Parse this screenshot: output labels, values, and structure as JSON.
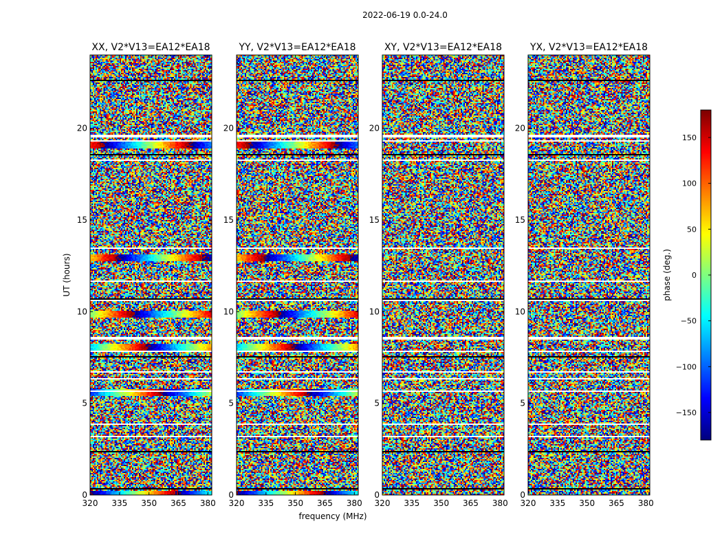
{
  "figure": {
    "suptitle": "2022-06-19 0.0-24.0",
    "xlabel": "frequency (MHz)",
    "ylabel": "UT (hours)"
  },
  "colorbar": {
    "label": "phase (deg.)",
    "range": [
      -180,
      180
    ],
    "ticks": [
      "150",
      "100",
      "50",
      "0",
      "−50",
      "−100",
      "−150"
    ],
    "tick_values": [
      150,
      100,
      50,
      0,
      -50,
      -100,
      -150
    ],
    "colormap": "jet"
  },
  "chart_data": [
    {
      "type": "heatmap",
      "title": "XX, V2*V13=EA12*EA18",
      "xlim": [
        320,
        382
      ],
      "ylim": [
        0,
        24
      ],
      "xticks": [
        "320",
        "335",
        "350",
        "365",
        "380"
      ],
      "xtick_values": [
        320,
        335,
        350,
        365,
        380
      ],
      "yticks": [
        "0",
        "5",
        "10",
        "15",
        "20"
      ],
      "ytick_values": [
        0,
        5,
        10,
        15,
        20
      ],
      "coherent_bands_ut": [
        0.1,
        5.6,
        8.1,
        9.9,
        13.0,
        19.1
      ],
      "value": "phase (deg.), mostly random noise"
    },
    {
      "type": "heatmap",
      "title": "YY, V2*V13=EA12*EA18",
      "xlim": [
        320,
        382
      ],
      "ylim": [
        0,
        24
      ],
      "xticks": [
        "320",
        "335",
        "350",
        "365",
        "380"
      ],
      "xtick_values": [
        320,
        335,
        350,
        365,
        380
      ],
      "yticks": [
        "0",
        "5",
        "10",
        "15",
        "20"
      ],
      "ytick_values": [
        0,
        5,
        10,
        15,
        20
      ],
      "coherent_bands_ut": [
        0.1,
        5.6,
        8.1,
        9.9,
        13.0,
        19.1
      ],
      "value": "phase (deg.), mostly random noise"
    },
    {
      "type": "heatmap",
      "title": "XY, V2*V13=EA12*EA18",
      "xlim": [
        320,
        382
      ],
      "ylim": [
        0,
        24
      ],
      "xticks": [
        "320",
        "335",
        "350",
        "365",
        "380"
      ],
      "xtick_values": [
        320,
        335,
        350,
        365,
        380
      ],
      "yticks": [
        "0",
        "5",
        "10",
        "15",
        "20"
      ],
      "ytick_values": [
        0,
        5,
        10,
        15,
        20
      ],
      "coherent_bands_ut": [],
      "value": "phase (deg.), random noise"
    },
    {
      "type": "heatmap",
      "title": "YX, V2*V13=EA12*EA18",
      "xlim": [
        320,
        382
      ],
      "ylim": [
        0,
        24
      ],
      "xticks": [
        "320",
        "335",
        "350",
        "365",
        "380"
      ],
      "xtick_values": [
        320,
        335,
        350,
        365,
        380
      ],
      "yticks": [
        "0",
        "5",
        "10",
        "15",
        "20"
      ],
      "ytick_values": [
        0,
        5,
        10,
        15,
        20
      ],
      "coherent_bands_ut": [],
      "value": "phase (deg.), random noise"
    }
  ]
}
